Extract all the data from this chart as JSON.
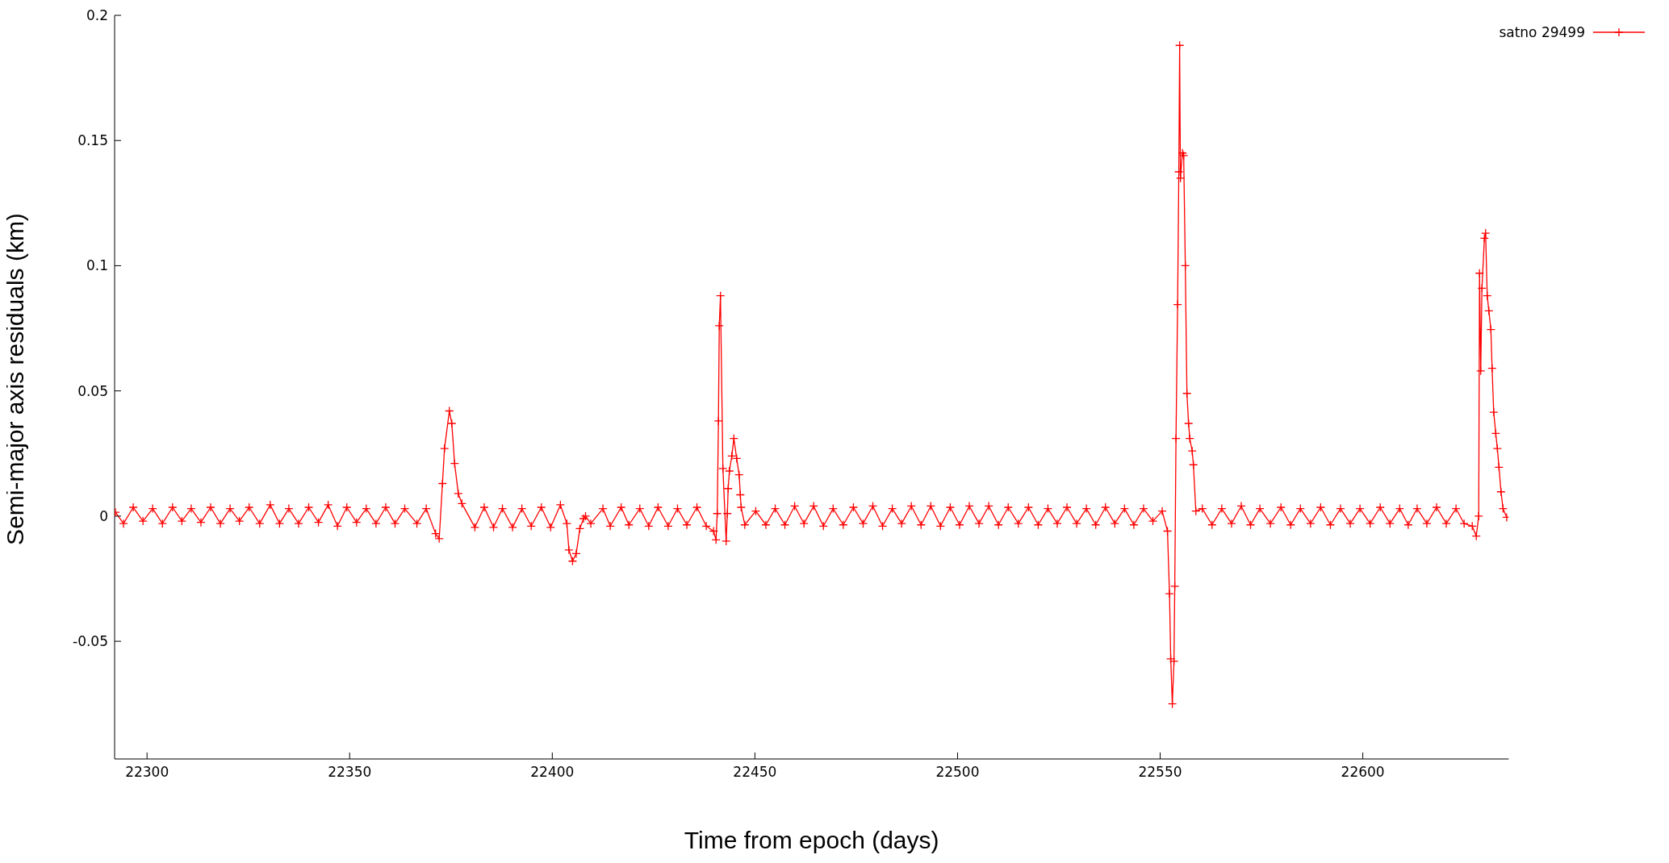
{
  "chart_data": {
    "type": "line",
    "xlabel": "Time from epoch (days)",
    "ylabel": "Semi-major axis residuals (km)",
    "xlim": [
      22292,
      22636
    ],
    "xticks": [
      22300,
      22350,
      22400,
      22450,
      22500,
      22550,
      22600
    ],
    "ylim": [
      -0.097,
      0.2
    ],
    "yticks": [
      -0.05,
      0,
      0.05,
      0.1,
      0.15,
      0.2
    ],
    "grid": false,
    "legend": "top right",
    "marker": "cross",
    "line_style": "solid",
    "series": [
      {
        "name": "satno 29499",
        "color": "#ff0000",
        "x": [
          22292.2,
          22294.2,
          22296.6,
          22299.0,
          22301.4,
          22303.8,
          22306.3,
          22308.6,
          22310.9,
          22313.3,
          22315.7,
          22318.1,
          22320.5,
          22322.8,
          22325.2,
          22327.8,
          22330.4,
          22332.7,
          22335.0,
          22337.4,
          22339.9,
          22342.3,
          22344.7,
          22347.0,
          22349.3,
          22351.7,
          22354.1,
          22356.5,
          22358.9,
          22361.2,
          22363.6,
          22366.6,
          22368.9,
          22371.2,
          22372.1,
          22372.9,
          22373.4,
          22374.6,
          22375.2,
          22375.9,
          22376.8,
          22377.7,
          22380.9,
          22383.2,
          22385.5,
          22387.7,
          22390.2,
          22392.5,
          22394.8,
          22397.3,
          22399.6,
          22402.0,
          22403.6,
          22404.1,
          22405.0,
          22405.9,
          22406.8,
          22407.7,
          22408.2,
          22409.5,
          22412.5,
          22414.3,
          22417.0,
          22418.9,
          22421.6,
          22423.8,
          22426.1,
          22428.6,
          22430.9,
          22433.2,
          22435.7,
          22438.0,
          22439.8,
          22440.4,
          22440.7,
          22441.0,
          22441.2,
          22441.5,
          22442.1,
          22442.9,
          22443.2,
          22443.4,
          22443.7,
          22444.3,
          22444.8,
          22445.5,
          22446.1,
          22446.4,
          22446.6,
          22447.5,
          22450.2,
          22452.7,
          22455.0,
          22457.4,
          22459.8,
          22462.1,
          22464.5,
          22466.9,
          22469.3,
          22471.8,
          22474.3,
          22476.7,
          22479.1,
          22481.5,
          22483.9,
          22486.2,
          22488.6,
          22491.0,
          22493.4,
          22495.8,
          22498.2,
          22500.5,
          22502.9,
          22505.3,
          22507.7,
          22510.1,
          22512.5,
          22515.0,
          22517.5,
          22519.9,
          22522.3,
          22524.6,
          22527.0,
          22529.4,
          22531.8,
          22534.1,
          22536.5,
          22538.8,
          22541.2,
          22543.5,
          22545.9,
          22548.2,
          22550.5,
          22551.8,
          22552.3,
          22552.6,
          22553.0,
          22553.4,
          22553.6,
          22553.9,
          22554.3,
          22554.6,
          22554.8,
          22555.0,
          22555.5,
          22555.8,
          22556.2,
          22556.6,
          22557.0,
          22557.3,
          22557.9,
          22558.2,
          22558.8,
          22560.4,
          22562.8,
          22565.2,
          22567.6,
          22570.0,
          22572.3,
          22574.6,
          22577.2,
          22579.8,
          22582.2,
          22584.6,
          22587.1,
          22589.6,
          22592.0,
          22594.5,
          22596.9,
          22599.3,
          22601.8,
          22604.3,
          22606.7,
          22609.1,
          22611.2,
          22613.4,
          22615.8,
          22618.2,
          22620.6,
          22623.0,
          22625.0,
          22627.0,
          22628.0,
          22628.6,
          22628.8,
          22629.1,
          22629.4,
          22630.0,
          22630.3,
          22630.7,
          22631.1,
          22631.6,
          22631.9,
          22632.3,
          22632.8,
          22633.2,
          22633.6,
          22634.1,
          22634.6,
          22635.5
        ],
        "values": [
          0.0015,
          -0.003,
          0.0035,
          -0.002,
          0.003,
          -0.003,
          0.0035,
          -0.002,
          0.003,
          -0.0025,
          0.0035,
          -0.003,
          0.003,
          -0.002,
          0.0035,
          -0.003,
          0.0045,
          -0.003,
          0.003,
          -0.003,
          0.0035,
          -0.0025,
          0.0045,
          -0.004,
          0.0035,
          -0.0025,
          0.003,
          -0.003,
          0.0035,
          -0.003,
          0.003,
          -0.003,
          0.003,
          -0.007,
          -0.009,
          0.013,
          0.027,
          0.042,
          0.037,
          0.021,
          0.009,
          0.005,
          -0.0045,
          0.0035,
          -0.0045,
          0.003,
          -0.0045,
          0.003,
          -0.004,
          0.0035,
          -0.0045,
          0.0045,
          -0.003,
          -0.0135,
          -0.018,
          -0.015,
          -0.005,
          -0.001,
          0.0,
          -0.003,
          0.003,
          -0.004,
          0.0035,
          -0.0035,
          0.003,
          -0.004,
          0.0035,
          -0.004,
          0.003,
          -0.0035,
          0.0035,
          -0.004,
          -0.006,
          -0.0095,
          0.001,
          0.038,
          0.076,
          0.088,
          0.019,
          -0.01,
          0.001,
          0.011,
          0.018,
          0.024,
          0.031,
          0.023,
          0.0165,
          0.0085,
          0.0035,
          -0.0035,
          0.002,
          -0.0035,
          0.003,
          -0.0035,
          0.004,
          -0.003,
          0.004,
          -0.004,
          0.003,
          -0.0035,
          0.0035,
          -0.003,
          0.004,
          -0.004,
          0.003,
          -0.003,
          0.004,
          -0.0035,
          0.004,
          -0.004,
          0.0035,
          -0.0035,
          0.004,
          -0.003,
          0.004,
          -0.0035,
          0.0035,
          -0.003,
          0.0035,
          -0.0035,
          0.003,
          -0.003,
          0.0035,
          -0.003,
          0.003,
          -0.0035,
          0.0035,
          -0.003,
          0.003,
          -0.0035,
          0.003,
          -0.002,
          0.002,
          -0.006,
          -0.031,
          -0.057,
          -0.075,
          -0.058,
          -0.028,
          0.031,
          0.0845,
          0.1375,
          0.188,
          0.135,
          0.145,
          0.144,
          0.1,
          0.049,
          0.037,
          0.031,
          0.026,
          0.0205,
          0.002,
          0.003,
          -0.0035,
          0.003,
          -0.003,
          0.004,
          -0.0035,
          0.003,
          -0.003,
          0.0035,
          -0.0035,
          0.003,
          -0.003,
          0.0035,
          -0.0035,
          0.003,
          -0.003,
          0.003,
          -0.003,
          0.0035,
          -0.003,
          0.003,
          -0.0035,
          0.003,
          -0.003,
          0.0035,
          -0.003,
          0.003,
          -0.003,
          -0.004,
          -0.008,
          0.0,
          0.097,
          0.058,
          0.091,
          0.111,
          0.113,
          0.088,
          0.082,
          0.0745,
          0.059,
          0.0415,
          0.033,
          0.027,
          0.0195,
          0.0097,
          0.003,
          -0.0005
        ]
      }
    ]
  }
}
